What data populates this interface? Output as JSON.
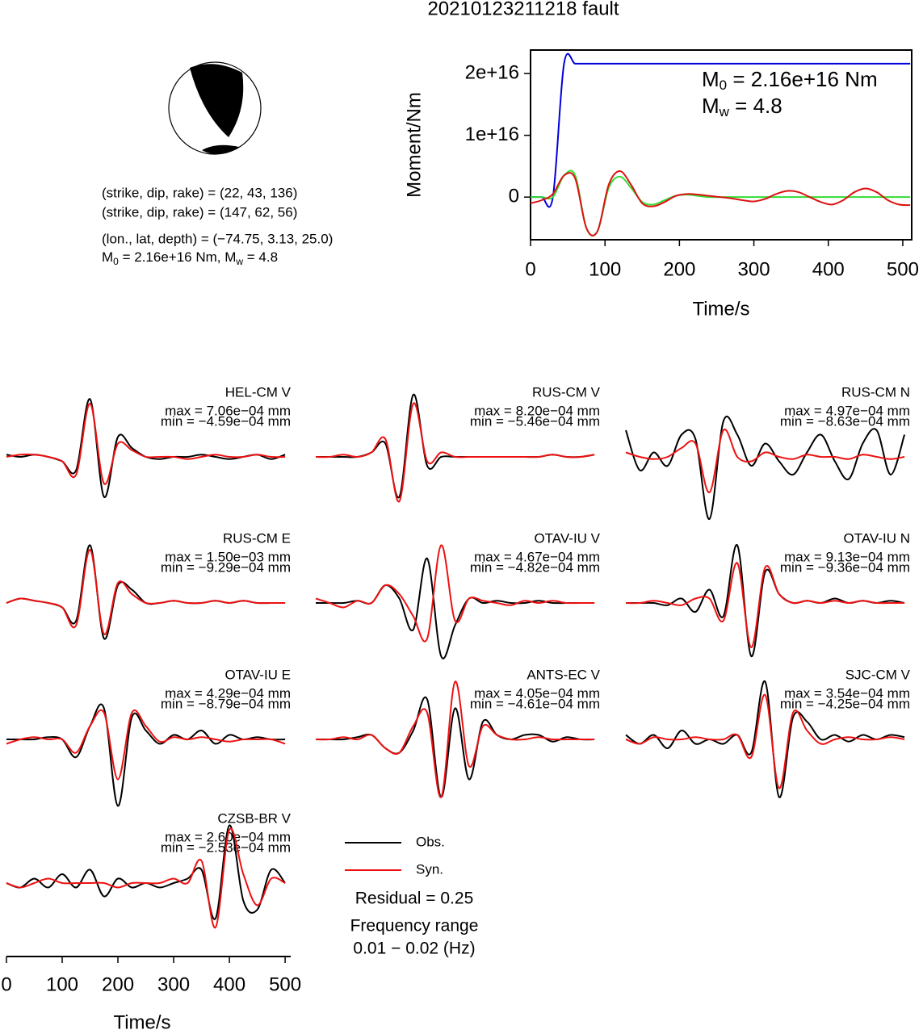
{
  "title": "20210123211218 fault",
  "mechanism": [
    "(strike, dip, rake) = (22, 43, 136)",
    "(strike, dip, rake) = (147, 62, 56)"
  ],
  "location": "(lon., lat, depth) = (−74.75, 3.13, 25.0)",
  "moment_line": [
    {
      "text": "M",
      "sub": false
    },
    {
      "text": "0",
      "sub": true
    },
    {
      "text": " = 2.16e+16 Nm, M",
      "sub": false
    },
    {
      "text": "w",
      "sub": true
    },
    {
      "text": " = 4.8",
      "sub": false
    }
  ],
  "residual": "Residual = 0.25",
  "frequency": [
    "Frequency range",
    "0.01 − 0.02 (Hz)"
  ],
  "chart_data": [
    {
      "type": "line",
      "xlabel": "Time/s",
      "ylabel": "Moment/Nm",
      "xlim": [
        0,
        512
      ],
      "ylim": [
        -6900000000000000.0,
        2.38e+16
      ],
      "xticks": [
        0,
        100,
        200,
        300,
        400,
        500
      ],
      "yticks": [
        {
          "value": 2e+16,
          "label": "2e+16"
        },
        {
          "value": 1e+16,
          "label": "1e+16"
        },
        0
      ],
      "annotations": [
        {
          "main": "M",
          "sub": "0",
          "text": " = 2.16e+16 Nm"
        },
        {
          "main": "M",
          "sub": "w",
          "text": " = 4.8"
        }
      ],
      "x": [
        0,
        15,
        30,
        45,
        60,
        75,
        90,
        105,
        120,
        135,
        150,
        165,
        180,
        195,
        210,
        225,
        240,
        255,
        270,
        285,
        300,
        315,
        330,
        345,
        360,
        375,
        390,
        405,
        420,
        435,
        450,
        465,
        480,
        495,
        510
      ],
      "series": [
        {
          "color": "#0000dd",
          "values": [
            0,
            0,
            0,
            2.16e+16,
            2.16e+16,
            2.16e+16,
            2.16e+16,
            2.16e+16,
            2.16e+16,
            2.16e+16,
            2.16e+16,
            2.16e+16,
            2.16e+16,
            2.16e+16,
            2.16e+16,
            2.16e+16,
            2.16e+16,
            2.16e+16,
            2.16e+16,
            2.16e+16,
            2.16e+16,
            2.16e+16,
            2.16e+16,
            2.16e+16,
            2.16e+16,
            2.16e+16,
            2.16e+16,
            2.16e+16,
            2.16e+16,
            2.16e+16,
            2.16e+16,
            2.16e+16,
            2.16e+16,
            2.16e+16,
            2.16e+16
          ]
        },
        {
          "color": "#33dd33",
          "values": [
            0,
            0,
            0,
            3500000000000000.0,
            3500000000000000.0,
            -5000000000000000.0,
            -5500000000000000.0,
            1500000000000000.0,
            3300000000000000.0,
            1500000000000000.0,
            -800000000000000.0,
            -1200000000000000.0,
            -500000000000000.0,
            200000000000000.0,
            400000000000000.0,
            200000000000000.0,
            0,
            0,
            0,
            0,
            0,
            0,
            0,
            0,
            0,
            0,
            0,
            0,
            0,
            0,
            0,
            0,
            0,
            0,
            0
          ]
        },
        {
          "color": "#dd1111",
          "values": [
            -1000000000000000.0,
            -500000000000000.0,
            500000000000000.0,
            3500000000000000.0,
            3000000000000000.0,
            -5000000000000000.0,
            -5500000000000000.0,
            2000000000000000.0,
            4200000000000000.0,
            2000000000000000.0,
            -1000000000000000.0,
            -1500000000000000.0,
            -800000000000000.0,
            200000000000000.0,
            500000000000000.0,
            400000000000000.0,
            200000000000000.0,
            0,
            -200000000000000.0,
            -500000000000000.0,
            -700000000000000.0,
            -300000000000000.0,
            500000000000000.0,
            1000000000000000.0,
            800000000000000.0,
            0,
            -800000000000000.0,
            -1200000000000000.0,
            -500000000000000.0,
            800000000000000.0,
            1400000000000000.0,
            800000000000000.0,
            -500000000000000.0,
            -1200000000000000.0,
            -1300000000000000.0
          ]
        }
      ]
    },
    {
      "type": "waveform",
      "xlabel": "Time/s",
      "xlim": [
        0,
        510
      ],
      "xticks": [
        0,
        100,
        200,
        300,
        400,
        500
      ],
      "x": [
        0,
        25,
        50,
        75,
        100,
        125,
        150,
        175,
        200,
        225,
        250,
        275,
        300,
        325,
        350,
        375,
        400,
        425,
        450,
        475,
        500
      ],
      "series": [
        {
          "name": "Obs.",
          "color": "#000000"
        },
        {
          "name": "Syn.",
          "color": "#ee1111"
        }
      ],
      "panels": [
        {
          "title": "HEL-CM V",
          "max": "max = 7.06e−04 mm",
          "min": "min = −4.59e−04 mm",
          "values": [
            [
              0.05,
              0,
              0.05,
              0,
              -0.1,
              -0.3,
              1.3,
              -0.9,
              0.45,
              0.2,
              0,
              -0.05,
              0,
              0,
              0.05,
              0,
              -0.05,
              0,
              0.05,
              -0.05,
              0.05
            ],
            [
              0,
              0.05,
              0.05,
              0,
              -0.1,
              -0.4,
              1.2,
              -0.6,
              0.3,
              0.15,
              0,
              0,
              0,
              -0.05,
              0,
              0.05,
              0,
              0,
              0.05,
              0,
              0
            ]
          ]
        },
        {
          "title": "RUS-CM V",
          "max": "max = 8.20e−04 mm",
          "min": "min = −5.46e−04 mm",
          "values": [
            [
              0,
              0,
              0,
              0,
              0.1,
              0.3,
              -0.9,
              1.4,
              -0.2,
              0,
              0,
              0,
              0,
              0,
              0,
              0,
              0,
              0.05,
              0,
              0,
              0.05
            ],
            [
              0,
              0,
              0.05,
              0,
              0.1,
              0.4,
              -1.0,
              1.2,
              -0.1,
              0.1,
              0,
              0,
              0,
              0,
              0,
              0,
              0,
              0.05,
              0,
              0,
              0.05
            ]
          ]
        },
        {
          "title": "RUS-CM N",
          "max": "max = 4.97e−04 mm",
          "min": "min = −8.63e−04 mm",
          "values": [
            [
              0.6,
              -0.3,
              0.1,
              -0.2,
              0.5,
              0.4,
              -1.4,
              0.8,
              0.5,
              -0.2,
              0.3,
              -0.1,
              -0.4,
              0.1,
              0.5,
              -0.1,
              -0.5,
              0.3,
              0.6,
              -0.4,
              0.5
            ],
            [
              0.1,
              0,
              -0.05,
              0,
              0.2,
              0.3,
              -0.8,
              0.6,
              0,
              -0.1,
              0.1,
              0,
              -0.05,
              0.05,
              0,
              0,
              -0.05,
              0.05,
              0,
              -0.05,
              0
            ]
          ]
        },
        {
          "title": "RUS-CM E",
          "max": "max = 1.50e−03 mm",
          "min": "min = −9.29e−04 mm",
          "values": [
            [
              0,
              0.1,
              0.05,
              0,
              -0.1,
              -0.4,
              1.3,
              -0.8,
              0.4,
              0.3,
              0,
              0,
              0.05,
              0,
              0,
              0.05,
              0,
              0.05,
              0,
              0,
              0
            ],
            [
              0,
              0.1,
              0.05,
              0,
              -0.1,
              -0.5,
              1.2,
              -0.7,
              0.45,
              0.2,
              0,
              0,
              0.05,
              0,
              0,
              0.05,
              0,
              0.05,
              0,
              0,
              0
            ]
          ]
        },
        {
          "title": "OTAV-IU V",
          "max": "max = 4.67e−04 mm",
          "min": "min = −4.82e−04 mm",
          "values": [
            [
              0,
              0,
              0,
              0.05,
              0,
              0.4,
              0.1,
              -0.6,
              1.0,
              -1.2,
              -0.5,
              0.1,
              0,
              0.05,
              0,
              0,
              0.05,
              0,
              0,
              0,
              0
            ],
            [
              0.1,
              0,
              -0.1,
              0.05,
              0,
              0.4,
              0.2,
              -0.3,
              -0.8,
              1.3,
              -0.4,
              0.1,
              0.05,
              0,
              -0.05,
              0.05,
              0,
              0.05,
              0,
              0,
              0
            ]
          ]
        },
        {
          "title": "OTAV-IU N",
          "max": "max = 9.13e−04 mm",
          "min": "min = −9.36e−04 mm",
          "values": [
            [
              0,
              0,
              0,
              -0.05,
              0.1,
              -0.2,
              0.3,
              -0.3,
              1.3,
              -1.2,
              0.7,
              0.2,
              0,
              0.05,
              0,
              0.1,
              0,
              0.05,
              0,
              0.05,
              0
            ],
            [
              0,
              0,
              0.05,
              0,
              -0.05,
              0.1,
              0.1,
              -0.4,
              0.9,
              -1.0,
              0.8,
              0.2,
              0,
              0.05,
              0,
              0.05,
              0,
              0.05,
              0,
              0,
              0
            ]
          ]
        },
        {
          "title": "OTAV-IU E",
          "max": "max = 4.29e−04 mm",
          "min": "min = −8.79e−04 mm",
          "values": [
            [
              0,
              0,
              0,
              0.05,
              0,
              -0.4,
              0.3,
              0.7,
              -1.5,
              0.5,
              0.2,
              -0.1,
              0.1,
              0,
              0.2,
              -0.1,
              0.1,
              0,
              0.05,
              0,
              0
            ],
            [
              -0.1,
              0,
              0.05,
              0,
              0,
              -0.3,
              0.3,
              0.6,
              -0.9,
              0.6,
              0.3,
              -0.05,
              0.05,
              0,
              0.05,
              0,
              -0.05,
              0,
              0,
              0,
              -0.1
            ]
          ]
        },
        {
          "title": "ANTS-EC V",
          "max": "max = 4.05e−04 mm",
          "min": "min = −4.61e−04 mm",
          "values": [
            [
              0,
              0,
              0,
              0.05,
              0.1,
              -0.2,
              -0.3,
              0.2,
              0.9,
              -1.3,
              0.7,
              -0.9,
              0.4,
              0.1,
              0,
              0.1,
              0.1,
              -0.05,
              0.05,
              0,
              0
            ],
            [
              0,
              0,
              0.05,
              0,
              0.1,
              -0.2,
              -0.3,
              0.3,
              0.6,
              -1.3,
              1.3,
              -0.6,
              0.3,
              0.1,
              0,
              0,
              0.05,
              0,
              0,
              0,
              0
            ]
          ]
        },
        {
          "title": "SJC-CM V",
          "max": "max = 3.54e−04 mm",
          "min": "min = −4.25e−04 mm",
          "values": [
            [
              0.1,
              -0.1,
              0.1,
              -0.2,
              0.2,
              -0.1,
              0,
              -0.1,
              0.1,
              -0.3,
              1.3,
              -1.3,
              0.5,
              0.4,
              0,
              0.1,
              -0.05,
              0.1,
              0,
              0.1,
              0.05
            ],
            [
              0,
              -0.1,
              0.05,
              0,
              0,
              0.05,
              0,
              0,
              0.1,
              -0.4,
              1.0,
              -1.1,
              0.6,
              0.2,
              -0.1,
              0,
              0.05,
              0,
              0,
              0.05,
              0
            ]
          ]
        },
        {
          "title": "CZSB-BR V",
          "max": "max = 2.60e−04 mm",
          "min": "min = −2.53e−04 mm",
          "values": [
            [
              0,
              -0.1,
              0.1,
              -0.1,
              0.2,
              -0.1,
              0.3,
              -0.3,
              0.1,
              -0.1,
              0,
              -0.1,
              0,
              0.1,
              0.3,
              -0.8,
              1.3,
              -0.4,
              -0.6,
              0.3,
              0
            ],
            [
              0,
              -0.1,
              0,
              0.1,
              0,
              0,
              0,
              0,
              -0.1,
              0,
              0,
              0,
              0.1,
              0,
              0.5,
              -1.0,
              1.2,
              0.2,
              -0.5,
              0.1,
              0
            ]
          ]
        }
      ]
    }
  ]
}
